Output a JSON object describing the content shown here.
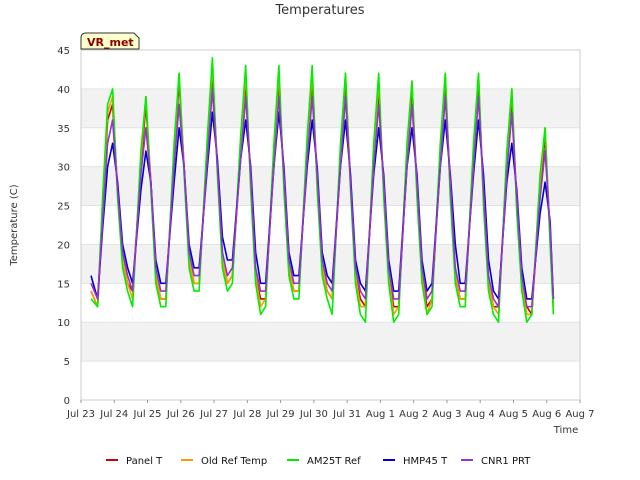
{
  "chart_data": {
    "type": "line",
    "title": "Temperatures",
    "xlabel": "Time",
    "ylabel": "Temperature (C)",
    "ylim": [
      0,
      45
    ],
    "yticks": [
      0,
      5,
      10,
      15,
      20,
      25,
      30,
      35,
      40,
      45
    ],
    "xlim": [
      0,
      15
    ],
    "x_tick_labels": [
      "Jul 23",
      "Jul 24",
      "Jul 25",
      "Jul 26",
      "Jul 27",
      "Jul 28",
      "Jul 29",
      "Jul 30",
      "Jul 31",
      "Aug 1",
      "Aug 2",
      "Aug 3",
      "Aug 4",
      "Aug 5",
      "Aug 6",
      "Aug 7"
    ],
    "badge": "VR_met",
    "legend_position": "bottom",
    "x_note": "x values are days since Jul 23 00:00",
    "series": [
      {
        "name": "Panel T",
        "color": "#cc0000",
        "x": [
          0.3,
          0.5,
          0.65,
          0.8,
          0.95,
          1.1,
          1.25,
          1.4,
          1.55,
          1.8,
          1.95,
          2.1,
          2.25,
          2.4,
          2.55,
          2.8,
          2.95,
          3.1,
          3.25,
          3.4,
          3.55,
          3.8,
          3.95,
          4.1,
          4.25,
          4.4,
          4.55,
          4.8,
          4.95,
          5.1,
          5.25,
          5.4,
          5.55,
          5.8,
          5.95,
          6.1,
          6.25,
          6.4,
          6.55,
          6.8,
          6.95,
          7.1,
          7.25,
          7.4,
          7.55,
          7.8,
          7.95,
          8.1,
          8.25,
          8.4,
          8.55,
          8.8,
          8.95,
          9.1,
          9.25,
          9.4,
          9.55,
          9.8,
          9.95,
          10.1,
          10.25,
          10.4,
          10.55,
          10.8,
          10.95,
          11.1,
          11.25,
          11.4,
          11.55,
          11.8,
          11.95,
          12.1,
          12.25,
          12.4,
          12.55,
          12.8,
          12.95,
          13.1,
          13.25,
          13.4,
          13.55,
          13.8,
          13.95,
          14.1,
          14.2
        ],
        "values": [
          14,
          12,
          24,
          36,
          38,
          27,
          18,
          15,
          14,
          30,
          38,
          28,
          16,
          13,
          13,
          31,
          41,
          30,
          18,
          15,
          15,
          32,
          42,
          30,
          18,
          15,
          16,
          32,
          41,
          28,
          16,
          13,
          13,
          31,
          41,
          28,
          17,
          14,
          14,
          32,
          41,
          28,
          17,
          14,
          13,
          31,
          41,
          28,
          16,
          13,
          12,
          31,
          40,
          27,
          16,
          12,
          12,
          31,
          40,
          27,
          16,
          12,
          13,
          31,
          41,
          27,
          16,
          13,
          13,
          31,
          41,
          26,
          15,
          12,
          12,
          30,
          39,
          25,
          15,
          12,
          11,
          27,
          34,
          21,
          12
        ]
      },
      {
        "name": "Old Ref Temp",
        "color": "#ff9900",
        "x": [
          0.3,
          0.5,
          0.65,
          0.8,
          0.95,
          1.1,
          1.25,
          1.4,
          1.55,
          1.8,
          1.95,
          2.1,
          2.25,
          2.4,
          2.55,
          2.8,
          2.95,
          3.1,
          3.25,
          3.4,
          3.55,
          3.8,
          3.95,
          4.1,
          4.25,
          4.4,
          4.55,
          4.8,
          4.95,
          5.1,
          5.25,
          5.4,
          5.55,
          5.8,
          5.95,
          6.1,
          6.25,
          6.4,
          6.55,
          6.8,
          6.95,
          7.1,
          7.25,
          7.4,
          7.55,
          7.8,
          7.95,
          8.1,
          8.25,
          8.4,
          8.55,
          8.8,
          8.95,
          9.1,
          9.25,
          9.4,
          9.55,
          9.8,
          9.95,
          10.1,
          10.25,
          10.4,
          10.55,
          10.8,
          10.95,
          11.1,
          11.25,
          11.4,
          11.55,
          11.8,
          11.95,
          12.1,
          12.25,
          12.4,
          12.55,
          12.8,
          12.95,
          13.1,
          13.25,
          13.4,
          13.55,
          13.8,
          13.95,
          14.1,
          14.2
        ],
        "values": [
          14,
          12,
          25,
          37,
          39,
          27,
          18,
          15,
          13,
          31,
          39,
          28,
          16,
          13,
          13,
          32,
          42,
          30,
          18,
          15,
          15,
          33,
          43,
          30,
          18,
          15,
          16,
          33,
          42,
          28,
          16,
          12,
          13,
          32,
          42,
          28,
          17,
          14,
          14,
          33,
          42,
          28,
          17,
          14,
          13,
          32,
          42,
          28,
          16,
          12,
          12,
          32,
          41,
          27,
          16,
          11,
          12,
          32,
          41,
          27,
          16,
          11,
          13,
          32,
          42,
          27,
          16,
          13,
          13,
          32,
          42,
          26,
          15,
          12,
          11,
          31,
          40,
          25,
          15,
          11,
          11,
          28,
          35,
          21,
          12
        ]
      },
      {
        "name": "AM25T Ref",
        "color": "#00ee00",
        "x": [
          0.3,
          0.5,
          0.65,
          0.8,
          0.95,
          1.1,
          1.25,
          1.4,
          1.55,
          1.8,
          1.95,
          2.1,
          2.25,
          2.4,
          2.55,
          2.8,
          2.95,
          3.1,
          3.25,
          3.4,
          3.55,
          3.8,
          3.95,
          4.1,
          4.25,
          4.4,
          4.55,
          4.8,
          4.95,
          5.1,
          5.25,
          5.4,
          5.55,
          5.8,
          5.95,
          6.1,
          6.25,
          6.4,
          6.55,
          6.8,
          6.95,
          7.1,
          7.25,
          7.4,
          7.55,
          7.8,
          7.95,
          8.1,
          8.25,
          8.4,
          8.55,
          8.8,
          8.95,
          9.1,
          9.25,
          9.4,
          9.55,
          9.8,
          9.95,
          10.1,
          10.25,
          10.4,
          10.55,
          10.8,
          10.95,
          11.1,
          11.25,
          11.4,
          11.55,
          11.8,
          11.95,
          12.1,
          12.25,
          12.4,
          12.55,
          12.8,
          12.95,
          13.1,
          13.25,
          13.4,
          13.55,
          13.8,
          13.95,
          14.1,
          14.2
        ],
        "values": [
          13,
          12,
          26,
          38,
          40,
          26,
          17,
          14,
          12,
          32,
          39,
          27,
          15,
          12,
          12,
          33,
          42,
          29,
          17,
          14,
          14,
          34,
          44,
          29,
          17,
          14,
          15,
          34,
          43,
          27,
          15,
          11,
          12,
          33,
          43,
          27,
          16,
          13,
          13,
          34,
          43,
          27,
          16,
          13,
          11,
          33,
          42,
          27,
          15,
          11,
          10,
          33,
          42,
          26,
          15,
          10,
          11,
          33,
          41,
          26,
          15,
          11,
          12,
          33,
          42,
          26,
          15,
          12,
          12,
          33,
          42,
          25,
          14,
          11,
          10,
          32,
          40,
          24,
          14,
          10,
          11,
          29,
          35,
          20,
          11
        ]
      },
      {
        "name": "HMP45 T",
        "color": "#0000cc",
        "x": [
          0.3,
          0.5,
          0.65,
          0.8,
          0.95,
          1.1,
          1.25,
          1.4,
          1.55,
          1.8,
          1.95,
          2.1,
          2.25,
          2.4,
          2.55,
          2.8,
          2.95,
          3.1,
          3.25,
          3.4,
          3.55,
          3.8,
          3.95,
          4.1,
          4.25,
          4.4,
          4.55,
          4.8,
          4.95,
          5.1,
          5.25,
          5.4,
          5.55,
          5.8,
          5.95,
          6.1,
          6.25,
          6.4,
          6.55,
          6.8,
          6.95,
          7.1,
          7.25,
          7.4,
          7.55,
          7.8,
          7.95,
          8.1,
          8.25,
          8.4,
          8.55,
          8.8,
          8.95,
          9.1,
          9.25,
          9.4,
          9.55,
          9.8,
          9.95,
          10.1,
          10.25,
          10.4,
          10.55,
          10.8,
          10.95,
          11.1,
          11.25,
          11.4,
          11.55,
          11.8,
          11.95,
          12.1,
          12.25,
          12.4,
          12.55,
          12.8,
          12.95,
          13.1,
          13.25,
          13.4,
          13.55,
          13.8,
          13.95,
          14.1,
          14.2
        ],
        "values": [
          16,
          13,
          22,
          30,
          33,
          28,
          20,
          17,
          15,
          27,
          32,
          28,
          18,
          15,
          15,
          28,
          35,
          30,
          20,
          17,
          17,
          30,
          37,
          31,
          21,
          18,
          18,
          31,
          36,
          30,
          19,
          15,
          15,
          30,
          37,
          30,
          19,
          16,
          16,
          30,
          36,
          30,
          19,
          16,
          15,
          30,
          36,
          29,
          18,
          15,
          14,
          29,
          35,
          29,
          18,
          14,
          14,
          30,
          35,
          29,
          18,
          14,
          15,
          30,
          36,
          29,
          20,
          15,
          15,
          29,
          36,
          29,
          18,
          14,
          13,
          28,
          33,
          27,
          17,
          13,
          13,
          24,
          28,
          23,
          13
        ]
      },
      {
        "name": "CNR1 PRT",
        "color": "#9933cc",
        "x": [
          0.3,
          0.5,
          0.65,
          0.8,
          0.95,
          1.1,
          1.25,
          1.4,
          1.55,
          1.8,
          1.95,
          2.1,
          2.25,
          2.4,
          2.55,
          2.8,
          2.95,
          3.1,
          3.25,
          3.4,
          3.55,
          3.8,
          3.95,
          4.1,
          4.25,
          4.4,
          4.55,
          4.8,
          4.95,
          5.1,
          5.25,
          5.4,
          5.55,
          5.8,
          5.95,
          6.1,
          6.25,
          6.4,
          6.55,
          6.8,
          6.95,
          7.1,
          7.25,
          7.4,
          7.55,
          7.8,
          7.95,
          8.1,
          8.25,
          8.4,
          8.55,
          8.8,
          8.95,
          9.1,
          9.25,
          9.4,
          9.55,
          9.8,
          9.95,
          10.1,
          10.25,
          10.4,
          10.55,
          10.8,
          10.95,
          11.1,
          11.25,
          11.4,
          11.55,
          11.8,
          11.95,
          12.1,
          12.25,
          12.4,
          12.55,
          12.8,
          12.95,
          13.1,
          13.25,
          13.4,
          13.55,
          13.8,
          13.95,
          14.1,
          14.2
        ],
        "values": [
          15,
          13,
          23,
          33,
          36,
          27,
          19,
          16,
          14,
          29,
          35,
          28,
          17,
          14,
          14,
          30,
          38,
          30,
          19,
          16,
          16,
          31,
          40,
          30,
          19,
          16,
          17,
          31,
          39,
          29,
          17,
          14,
          14,
          30,
          39,
          29,
          18,
          15,
          15,
          31,
          39,
          29,
          18,
          15,
          14,
          30,
          39,
          28,
          17,
          14,
          13,
          30,
          38,
          28,
          17,
          13,
          13,
          30,
          38,
          28,
          17,
          13,
          14,
          30,
          39,
          28,
          17,
          14,
          14,
          30,
          39,
          27,
          16,
          13,
          12,
          29,
          37,
          26,
          16,
          12,
          12,
          26,
          32,
          22,
          13
        ]
      }
    ]
  }
}
